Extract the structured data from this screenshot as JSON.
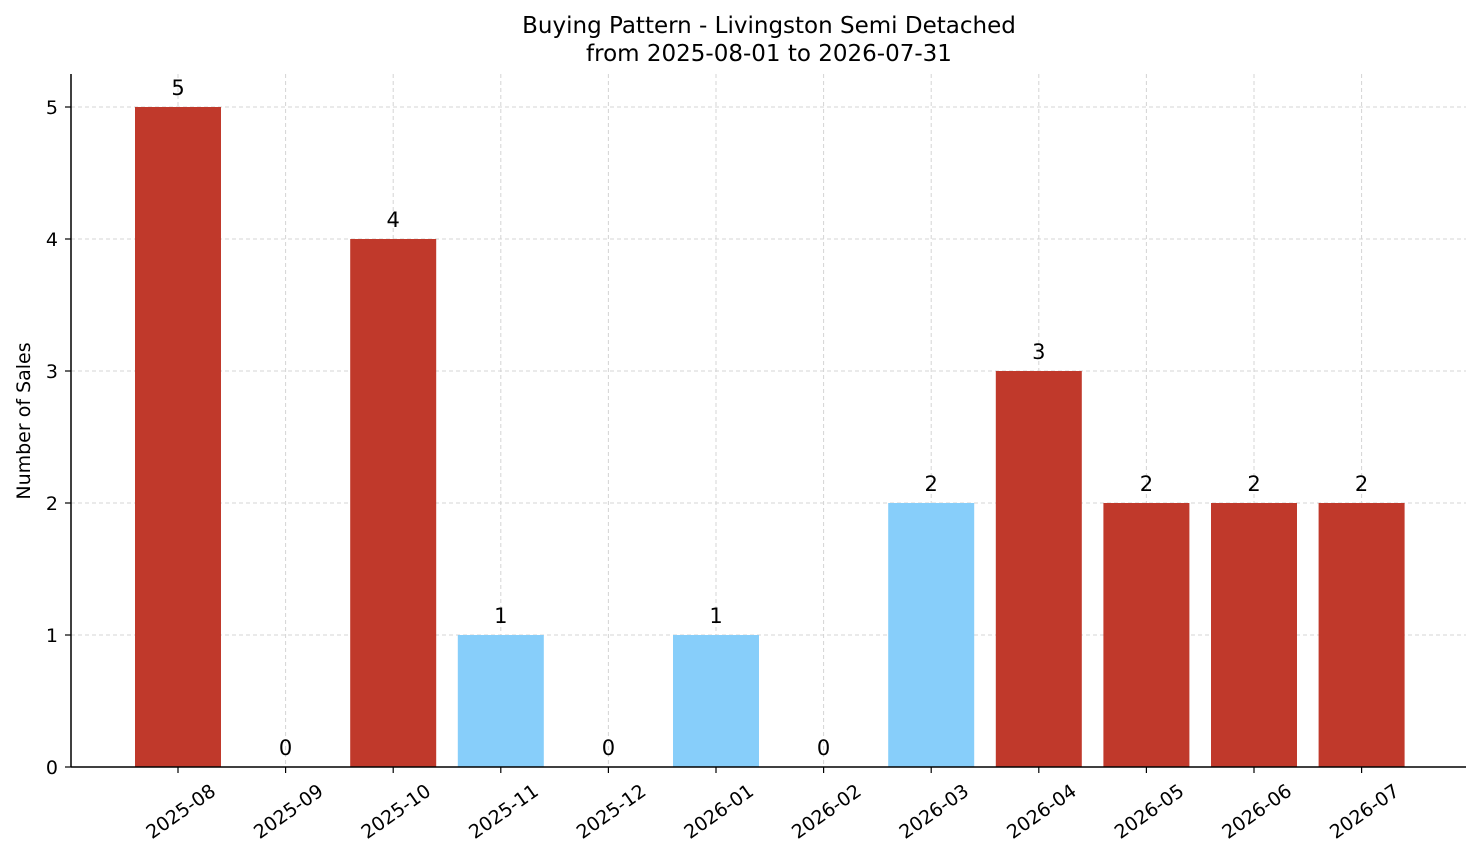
{
  "chart_data": {
    "type": "bar",
    "title": "Buying Pattern - Livingston Semi Detached",
    "subtitle": "from 2025-08-01 to 2026-07-31",
    "xlabel": "",
    "ylabel": "Number of Sales",
    "categories": [
      "2025-08",
      "2025-09",
      "2025-10",
      "2025-11",
      "2025-12",
      "2026-01",
      "2026-02",
      "2026-03",
      "2026-04",
      "2026-05",
      "2026-06",
      "2026-07"
    ],
    "values": [
      5,
      0,
      4,
      1,
      0,
      1,
      0,
      2,
      3,
      2,
      2,
      2
    ],
    "bar_colors": [
      "#c0392b",
      "#c0392b",
      "#c0392b",
      "#87cefa",
      "#c0392b",
      "#87cefa",
      "#c0392b",
      "#87cefa",
      "#c0392b",
      "#c0392b",
      "#c0392b",
      "#c0392b"
    ],
    "yticks": [
      0,
      1,
      2,
      3,
      4,
      5
    ],
    "ylim": [
      0,
      5.25
    ],
    "grid": true,
    "data_labels": true,
    "legend": "none"
  }
}
